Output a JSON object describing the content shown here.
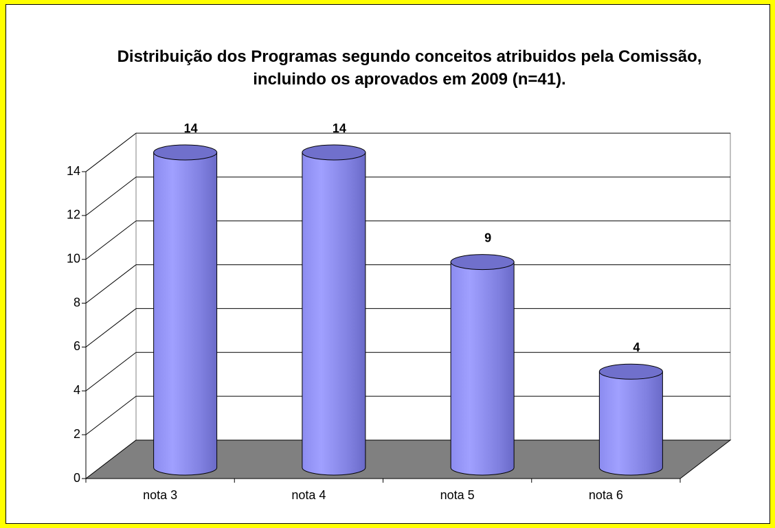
{
  "chart_data": {
    "type": "bar3d",
    "title": "Distribuição dos Programas segundo conceitos atribuidos pela Comissão, incluindo os aprovados em 2009 (n=41).",
    "categories": [
      "nota 3",
      "nota 4",
      "nota 5",
      "nota 6"
    ],
    "values": [
      14,
      14,
      9,
      4
    ],
    "color": "#9999ff",
    "ylim": [
      0,
      14
    ],
    "yticks": [
      0,
      2,
      4,
      6,
      8,
      10,
      12,
      14
    ],
    "grid": true
  }
}
